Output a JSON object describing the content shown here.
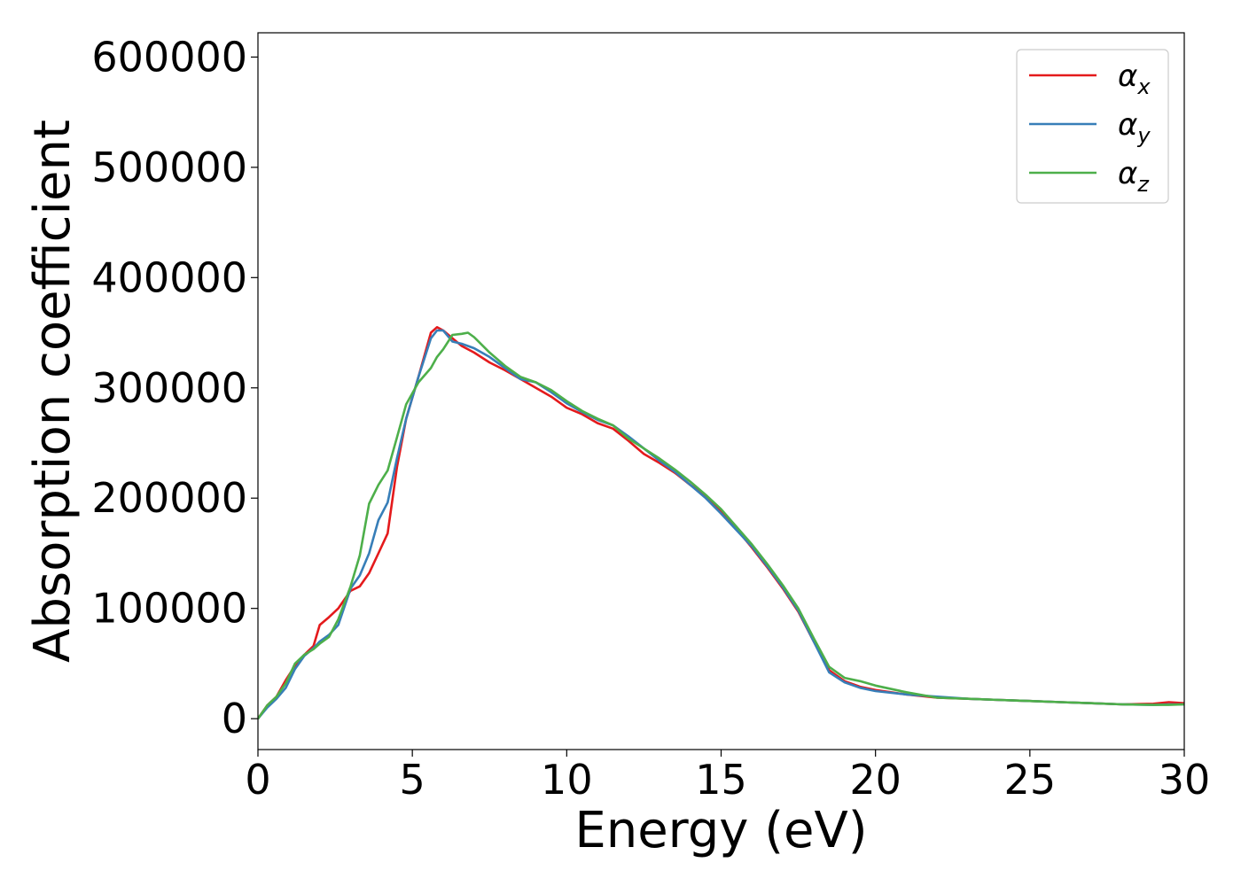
{
  "chart_data": {
    "type": "line",
    "title": "",
    "xlabel": "Energy (eV)",
    "ylabel": "Absorption coefficient",
    "xlim": [
      0,
      30
    ],
    "ylim": [
      -28000,
      622000
    ],
    "xticks": [
      0,
      5,
      10,
      15,
      20,
      25,
      30
    ],
    "yticks": [
      0,
      100000,
      200000,
      300000,
      400000,
      500000,
      600000
    ],
    "grid": false,
    "legend_position": "top-right",
    "series": [
      {
        "name": "α",
        "name_subscript": "x",
        "color": "#e41a1c",
        "x": [
          0,
          0.3,
          0.6,
          0.9,
          1.2,
          1.5,
          1.8,
          2.0,
          2.3,
          2.6,
          3.0,
          3.3,
          3.6,
          3.9,
          4.2,
          4.5,
          4.8,
          5.2,
          5.6,
          5.8,
          6.0,
          6.3,
          6.6,
          7.0,
          7.5,
          8.0,
          8.5,
          9.0,
          9.5,
          10.0,
          10.5,
          11.0,
          11.5,
          12.0,
          12.5,
          13.0,
          13.5,
          14.0,
          14.5,
          15.0,
          15.5,
          16.0,
          16.5,
          17.0,
          17.5,
          18.0,
          18.5,
          19.0,
          19.5,
          20.0,
          21.0,
          22.0,
          23.0,
          24.0,
          25.0,
          26.0,
          27.0,
          28.0,
          29.0,
          29.5,
          30.0
        ],
        "y": [
          0,
          12000,
          20000,
          35000,
          48000,
          58000,
          66000,
          85000,
          92000,
          100000,
          116000,
          120000,
          132000,
          150000,
          168000,
          228000,
          272000,
          310000,
          350000,
          355000,
          352000,
          345000,
          338000,
          332000,
          323000,
          316000,
          308000,
          300000,
          292000,
          282000,
          276000,
          268000,
          263000,
          252000,
          240000,
          232000,
          223000,
          212000,
          202000,
          188000,
          172000,
          155000,
          137000,
          118000,
          97000,
          70000,
          44000,
          34000,
          29000,
          26000,
          22000,
          19000,
          18000,
          17000,
          16000,
          15000,
          14000,
          13000,
          13500,
          15000,
          14000
        ]
      },
      {
        "name": "α",
        "name_subscript": "y",
        "color": "#377eb8",
        "x": [
          0,
          0.3,
          0.6,
          0.9,
          1.2,
          1.5,
          1.8,
          2.0,
          2.3,
          2.6,
          3.0,
          3.3,
          3.6,
          3.9,
          4.2,
          4.5,
          4.8,
          5.2,
          5.6,
          5.8,
          6.0,
          6.3,
          6.6,
          7.0,
          7.5,
          8.0,
          8.5,
          9.0,
          9.5,
          10.0,
          10.5,
          11.0,
          11.5,
          12.0,
          12.5,
          13.0,
          13.5,
          14.0,
          14.5,
          15.0,
          15.5,
          16.0,
          16.5,
          17.0,
          17.5,
          18.0,
          18.5,
          19.0,
          19.5,
          20.0,
          21.0,
          22.0,
          23.0,
          24.0,
          25.0,
          26.0,
          27.0,
          28.0,
          29.0,
          29.5,
          30.0
        ],
        "y": [
          0,
          10000,
          18000,
          28000,
          45000,
          57000,
          64000,
          70000,
          76000,
          85000,
          118000,
          130000,
          150000,
          180000,
          196000,
          236000,
          272000,
          310000,
          345000,
          352000,
          352000,
          342000,
          340000,
          336000,
          328000,
          318000,
          308000,
          305000,
          296000,
          286000,
          278000,
          271000,
          266000,
          256000,
          245000,
          234000,
          224000,
          212000,
          200000,
          186000,
          171000,
          156000,
          138000,
          119000,
          98000,
          70000,
          42000,
          33000,
          28000,
          25000,
          22000,
          20000,
          18000,
          17000,
          16000,
          15000,
          14000,
          13000,
          12500,
          13000,
          13000
        ]
      },
      {
        "name": "α",
        "name_subscript": "z",
        "color": "#4daf4a",
        "x": [
          0,
          0.3,
          0.6,
          0.9,
          1.2,
          1.5,
          1.8,
          2.0,
          2.3,
          2.6,
          3.0,
          3.3,
          3.6,
          3.9,
          4.2,
          4.5,
          4.8,
          5.2,
          5.6,
          5.8,
          6.0,
          6.3,
          6.6,
          6.8,
          7.0,
          7.5,
          8.0,
          8.5,
          9.0,
          9.5,
          10.0,
          10.5,
          11.0,
          11.5,
          12.0,
          12.5,
          13.0,
          13.5,
          14.0,
          14.5,
          15.0,
          15.5,
          16.0,
          16.5,
          17.0,
          17.5,
          18.0,
          18.5,
          19.0,
          19.5,
          20.0,
          21.0,
          22.0,
          23.0,
          24.0,
          25.0,
          26.0,
          27.0,
          28.0,
          29.0,
          29.5,
          30.0
        ],
        "y": [
          0,
          12000,
          20000,
          32000,
          50000,
          58000,
          63000,
          68000,
          74000,
          90000,
          120000,
          148000,
          195000,
          212000,
          225000,
          255000,
          285000,
          305000,
          318000,
          328000,
          335000,
          348000,
          349000,
          350000,
          346000,
          332000,
          320000,
          310000,
          305000,
          298000,
          288000,
          279000,
          272000,
          266000,
          254000,
          245000,
          236000,
          226000,
          215000,
          203000,
          190000,
          174000,
          158000,
          140000,
          121000,
          100000,
          73000,
          47000,
          37000,
          34000,
          30000,
          24000,
          19000,
          18000,
          17000,
          16000,
          15000,
          14000,
          13000,
          12500,
          12500,
          13000
        ]
      }
    ]
  }
}
